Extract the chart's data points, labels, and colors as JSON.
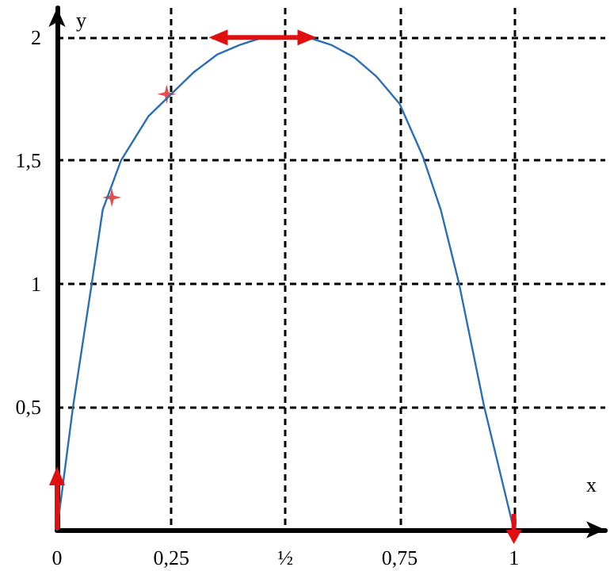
{
  "chart_data": {
    "type": "line",
    "xlabel": "x",
    "ylabel": "y",
    "xlim": [
      0,
      1.2
    ],
    "ylim": [
      0,
      2.12
    ],
    "xticks": [
      {
        "value": 0,
        "label": "0"
      },
      {
        "value": 0.25,
        "label": "0,25"
      },
      {
        "value": 0.5,
        "label": "½"
      },
      {
        "value": 0.75,
        "label": "0,75"
      },
      {
        "value": 1,
        "label": "1"
      }
    ],
    "yticks": [
      {
        "value": 0.5,
        "label": "0,5"
      },
      {
        "value": 1,
        "label": "1"
      },
      {
        "value": 1.5,
        "label": "1,5"
      },
      {
        "value": 2,
        "label": "2"
      }
    ],
    "grid": true,
    "series": [
      {
        "color": "#2a6fb5",
        "marker": "none",
        "line_style": "solid",
        "x": [
          0,
          0.035,
          0.076,
          0.1,
          0.14,
          0.2,
          0.25,
          0.3,
          0.35,
          0.4,
          0.45,
          0.5,
          0.55,
          0.6,
          0.65,
          0.7,
          0.75,
          0.8,
          0.84,
          0.88,
          0.935,
          1
        ],
        "values": [
          0,
          0.5,
          1,
          1.3,
          1.5,
          1.68,
          1.77,
          1.86,
          1.93,
          1.97,
          2,
          2,
          2,
          1.97,
          1.92,
          1.84,
          1.73,
          1.52,
          1.3,
          1,
          0.5,
          0
        ]
      },
      {
        "type": "scatter",
        "color": "#e02020",
        "marker": "cross",
        "x": [
          0.12,
          0.24
        ],
        "values": [
          1.35,
          1.77
        ]
      }
    ]
  }
}
